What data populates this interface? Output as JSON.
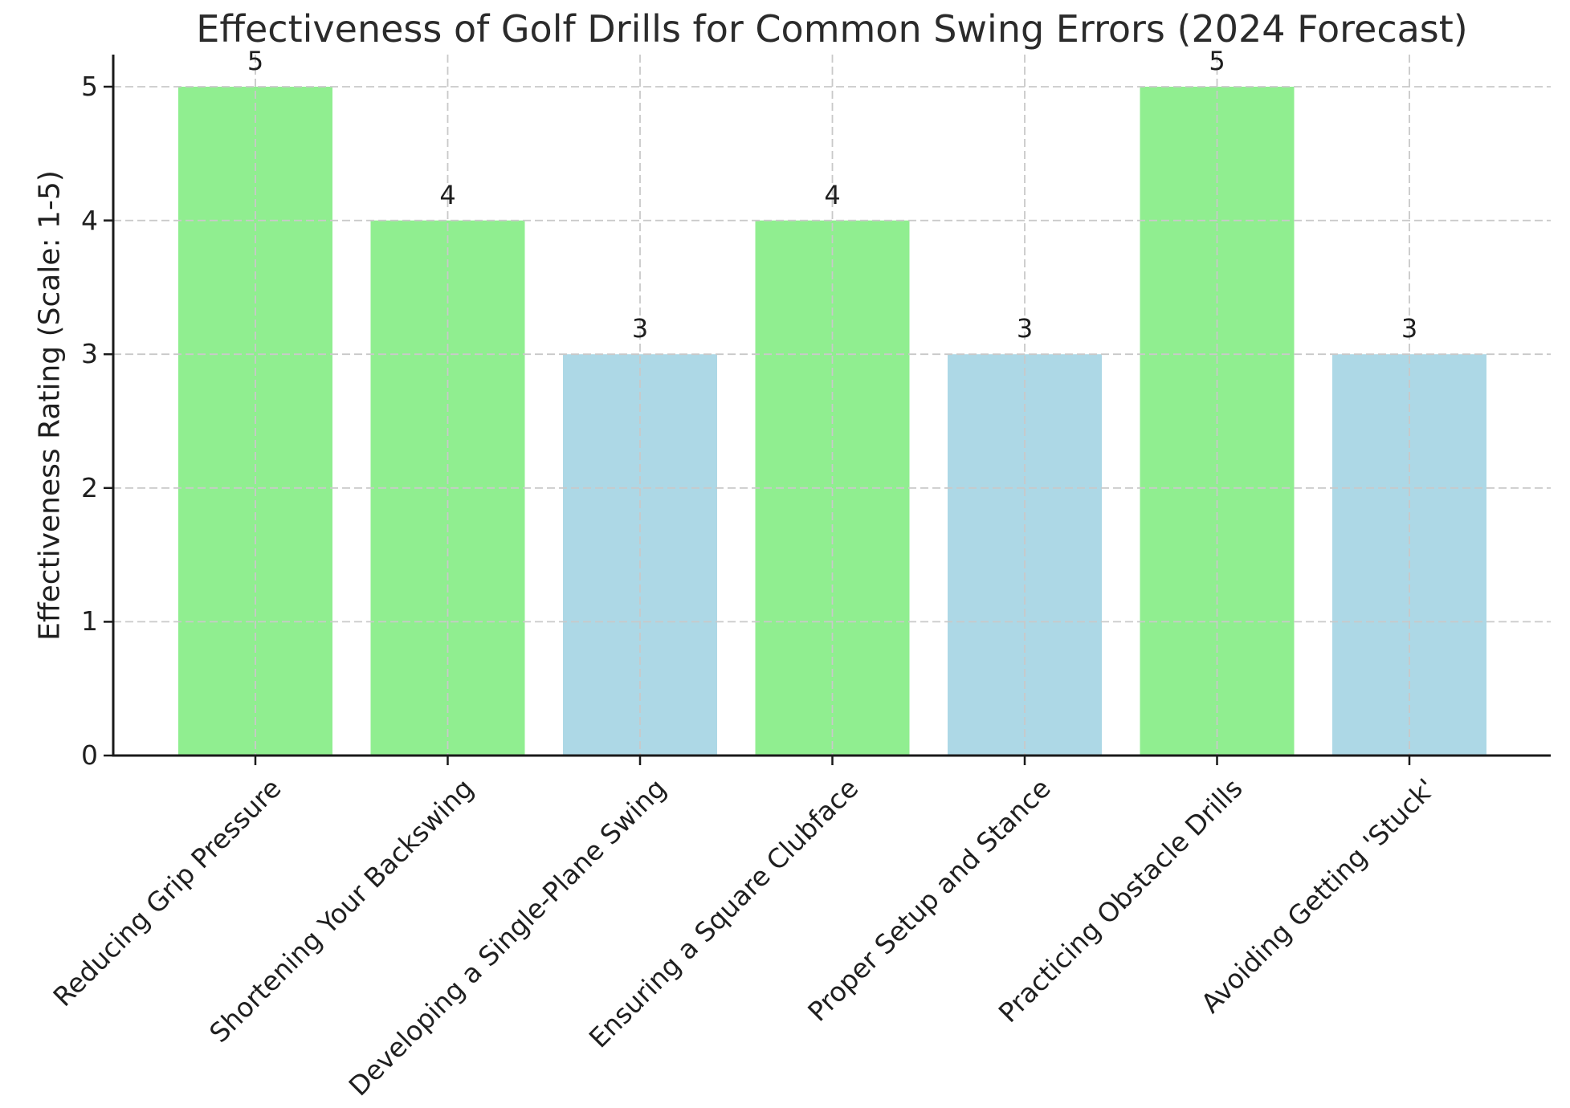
{
  "chart_data": {
    "type": "bar",
    "title": "Effectiveness of Golf Drills for Common Swing Errors (2024 Forecast)",
    "xlabel": "",
    "ylabel": "Effectiveness Rating (Scale: 1-5)",
    "categories": [
      "Reducing Grip Pressure",
      "Shortening Your Backswing",
      "Developing a Single-Plane Swing",
      "Ensuring a Square Clubface",
      "Proper Setup and Stance",
      "Practicing Obstacle Drills",
      "Avoiding Getting 'Stuck'"
    ],
    "values": [
      5,
      4,
      3,
      4,
      3,
      5,
      3
    ],
    "value_labels": [
      "5",
      "4",
      "3",
      "4",
      "3",
      "5",
      "3"
    ],
    "bar_colors": [
      "#90EE90",
      "#90EE90",
      "#ADD8E6",
      "#90EE90",
      "#ADD8E6",
      "#90EE90",
      "#ADD8E6"
    ],
    "yticks": [
      "0",
      "1",
      "2",
      "3",
      "4",
      "5"
    ],
    "ylim": [
      0,
      5.25
    ],
    "grid": "dashed gridlines on both axes, drawn over bars",
    "legend": "none",
    "colors": {
      "high_rating_bar": "#90EE90",
      "low_rating_bar": "#ADD8E6",
      "gridline": "#c9c9c9",
      "axis": "#1a1a1a",
      "text": "#1f1f1f",
      "background": "#ffffff"
    }
  }
}
